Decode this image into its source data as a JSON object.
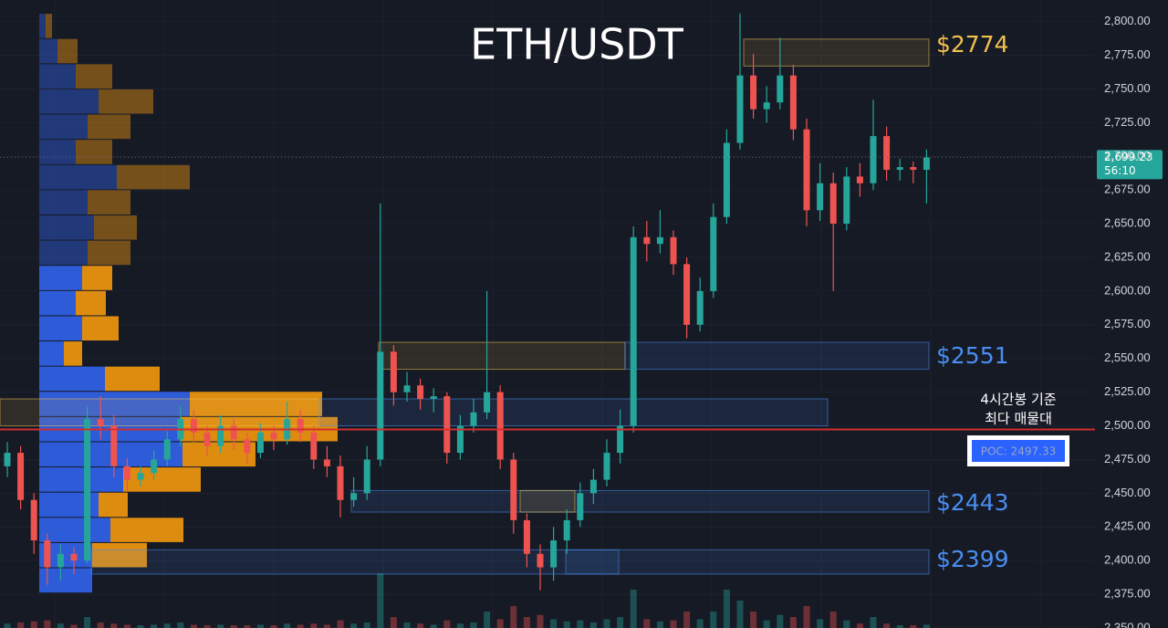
{
  "chart_data": {
    "type": "candlestick",
    "title": "ETH/USDT",
    "colors": {
      "up": "#26a69a",
      "down": "#ef5350"
    },
    "ylim": [
      2350,
      2816
    ],
    "yticks": [
      {
        "value": 2350,
        "label": "2,350.00"
      },
      {
        "value": 2375,
        "label": "2,375.00"
      },
      {
        "value": 2400,
        "label": "2,400.00"
      },
      {
        "value": 2425,
        "label": "2,425.00"
      },
      {
        "value": 2450,
        "label": "2,450.00"
      },
      {
        "value": 2475,
        "label": "2,475.00"
      },
      {
        "value": 2500,
        "label": "2,500.00"
      },
      {
        "value": 2525,
        "label": "2,525.00"
      },
      {
        "value": 2550,
        "label": "2,550.00"
      },
      {
        "value": 2575,
        "label": "2,575.00"
      },
      {
        "value": 2600,
        "label": "2,600.00"
      },
      {
        "value": 2625,
        "label": "2,625.00"
      },
      {
        "value": 2650,
        "label": "2,650.00"
      },
      {
        "value": 2675,
        "label": "2,675.00"
      },
      {
        "value": 2700,
        "label": "2,700.00"
      },
      {
        "value": 2725,
        "label": "2,725.00"
      },
      {
        "value": 2750,
        "label": "2,750.00"
      },
      {
        "value": 2775,
        "label": "2,775.00"
      },
      {
        "value": 2800,
        "label": "2,800.00"
      }
    ],
    "grid": true,
    "candles": [
      [
        2470,
        2488,
        2462,
        2480
      ],
      [
        2480,
        2485,
        2438,
        2445
      ],
      [
        2445,
        2450,
        2405,
        2415
      ],
      [
        2415,
        2420,
        2382,
        2395
      ],
      [
        2395,
        2412,
        2385,
        2405
      ],
      [
        2405,
        2410,
        2390,
        2400
      ],
      [
        2400,
        2515,
        2398,
        2505
      ],
      [
        2505,
        2522,
        2490,
        2500
      ],
      [
        2500,
        2508,
        2462,
        2470
      ],
      [
        2470,
        2476,
        2452,
        2460
      ],
      [
        2460,
        2470,
        2455,
        2465
      ],
      [
        2465,
        2482,
        2460,
        2475
      ],
      [
        2475,
        2496,
        2470,
        2490
      ],
      [
        2490,
        2515,
        2485,
        2505
      ],
      [
        2505,
        2512,
        2488,
        2495
      ],
      [
        2495,
        2500,
        2478,
        2485
      ],
      [
        2485,
        2508,
        2480,
        2500
      ],
      [
        2500,
        2505,
        2482,
        2490
      ],
      [
        2490,
        2495,
        2472,
        2480
      ],
      [
        2480,
        2502,
        2476,
        2495
      ],
      [
        2495,
        2500,
        2482,
        2490
      ],
      [
        2490,
        2518,
        2486,
        2505
      ],
      [
        2505,
        2512,
        2488,
        2495
      ],
      [
        2495,
        2500,
        2468,
        2475
      ],
      [
        2475,
        2485,
        2462,
        2470
      ],
      [
        2470,
        2478,
        2432,
        2445
      ],
      [
        2445,
        2462,
        2440,
        2450
      ],
      [
        2450,
        2485,
        2445,
        2475
      ],
      [
        2475,
        2665,
        2470,
        2555
      ],
      [
        2555,
        2560,
        2515,
        2525
      ],
      [
        2525,
        2540,
        2518,
        2530
      ],
      [
        2530,
        2535,
        2512,
        2520
      ],
      [
        2520,
        2528,
        2510,
        2522
      ],
      [
        2522,
        2525,
        2472,
        2480
      ],
      [
        2480,
        2508,
        2475,
        2500
      ],
      [
        2500,
        2520,
        2495,
        2510
      ],
      [
        2510,
        2600,
        2505,
        2525
      ],
      [
        2525,
        2530,
        2468,
        2475
      ],
      [
        2475,
        2480,
        2420,
        2430
      ],
      [
        2430,
        2435,
        2395,
        2405
      ],
      [
        2405,
        2412,
        2378,
        2395
      ],
      [
        2395,
        2425,
        2385,
        2415
      ],
      [
        2415,
        2438,
        2405,
        2430
      ],
      [
        2430,
        2458,
        2425,
        2450
      ],
      [
        2450,
        2468,
        2442,
        2460
      ],
      [
        2460,
        2490,
        2455,
        2480
      ],
      [
        2480,
        2512,
        2472,
        2500
      ],
      [
        2500,
        2648,
        2495,
        2640
      ],
      [
        2640,
        2652,
        2622,
        2635
      ],
      [
        2635,
        2660,
        2628,
        2640
      ],
      [
        2640,
        2645,
        2612,
        2620
      ],
      [
        2620,
        2625,
        2565,
        2575
      ],
      [
        2575,
        2610,
        2570,
        2600
      ],
      [
        2600,
        2665,
        2595,
        2655
      ],
      [
        2655,
        2720,
        2650,
        2710
      ],
      [
        2710,
        2806,
        2705,
        2760
      ],
      [
        2760,
        2776,
        2728,
        2735
      ],
      [
        2735,
        2752,
        2725,
        2740
      ],
      [
        2740,
        2788,
        2735,
        2760
      ],
      [
        2760,
        2768,
        2712,
        2720
      ],
      [
        2720,
        2728,
        2648,
        2660
      ],
      [
        2660,
        2695,
        2652,
        2680
      ],
      [
        2680,
        2688,
        2600,
        2650
      ],
      [
        2650,
        2692,
        2645,
        2685
      ],
      [
        2685,
        2695,
        2670,
        2680
      ],
      [
        2680,
        2742,
        2675,
        2715
      ],
      [
        2715,
        2722,
        2682,
        2690
      ],
      [
        2690,
        2698,
        2682,
        2692
      ],
      [
        2692,
        2696,
        2680,
        2690
      ],
      [
        2690,
        2705,
        2665,
        2699.23
      ]
    ],
    "volume": [
      8,
      10,
      12,
      14,
      8,
      6,
      20,
      10,
      8,
      6,
      5,
      6,
      8,
      10,
      6,
      5,
      6,
      5,
      5,
      6,
      5,
      8,
      6,
      8,
      6,
      14,
      8,
      10,
      100,
      20,
      10,
      8,
      6,
      14,
      8,
      10,
      30,
      16,
      40,
      20,
      24,
      16,
      12,
      14,
      10,
      16,
      20,
      70,
      16,
      12,
      14,
      30,
      16,
      30,
      70,
      50,
      30,
      14,
      24,
      20,
      40,
      16,
      30,
      14,
      8,
      20,
      8,
      5,
      5,
      6
    ],
    "volume_profile": {
      "bins": [
        2376,
        2394.7,
        2413.4,
        2432.1,
        2450.8,
        2469.5,
        2488.2,
        2506.9,
        2525.6,
        2544.3,
        2563,
        2581.7,
        2600.4,
        2619.1,
        2637.8,
        2656.5,
        2675.2,
        2693.9,
        2712.6,
        2731.3,
        2750,
        2768.7,
        2787.4,
        2806.1
      ],
      "buy": [
        58,
        58,
        78,
        65,
        92,
        157,
        155,
        165,
        72,
        27,
        47,
        40,
        47,
        53,
        60,
        53,
        85,
        40,
        53,
        65,
        40,
        20,
        7
      ],
      "sell": [
        0,
        60,
        80,
        32,
        85,
        80,
        172,
        145,
        60,
        20,
        40,
        33,
        33,
        47,
        47,
        47,
        80,
        40,
        47,
        60,
        40,
        22,
        7
      ],
      "colors": {
        "buy": "#2f5fe0",
        "sell": "#e8920f"
      },
      "value_area_high": 2619.1
    },
    "zones": [
      {
        "low": 2767,
        "high": 2787,
        "label": "$2774",
        "color": "#f2c14e"
      },
      {
        "low": 2542,
        "high": 2562,
        "label": "$2551",
        "color": "#4a8ef0"
      },
      {
        "low": 2500,
        "high": 2520
      },
      {
        "low": 2436,
        "high": 2452,
        "label": "$2443",
        "color": "#4a8ef0"
      },
      {
        "low": 2390,
        "high": 2408,
        "label": "$2399",
        "color": "#4a8ef0"
      }
    ],
    "poc": {
      "value": 2497.33,
      "label": "POC: 2497.33",
      "color": "#d32f2f"
    },
    "annotation": [
      "4시간봉 기준",
      "최다 매물대"
    ],
    "last_price": {
      "value": 2699.23,
      "label": "2,699.23"
    },
    "countdown": "56:10"
  }
}
